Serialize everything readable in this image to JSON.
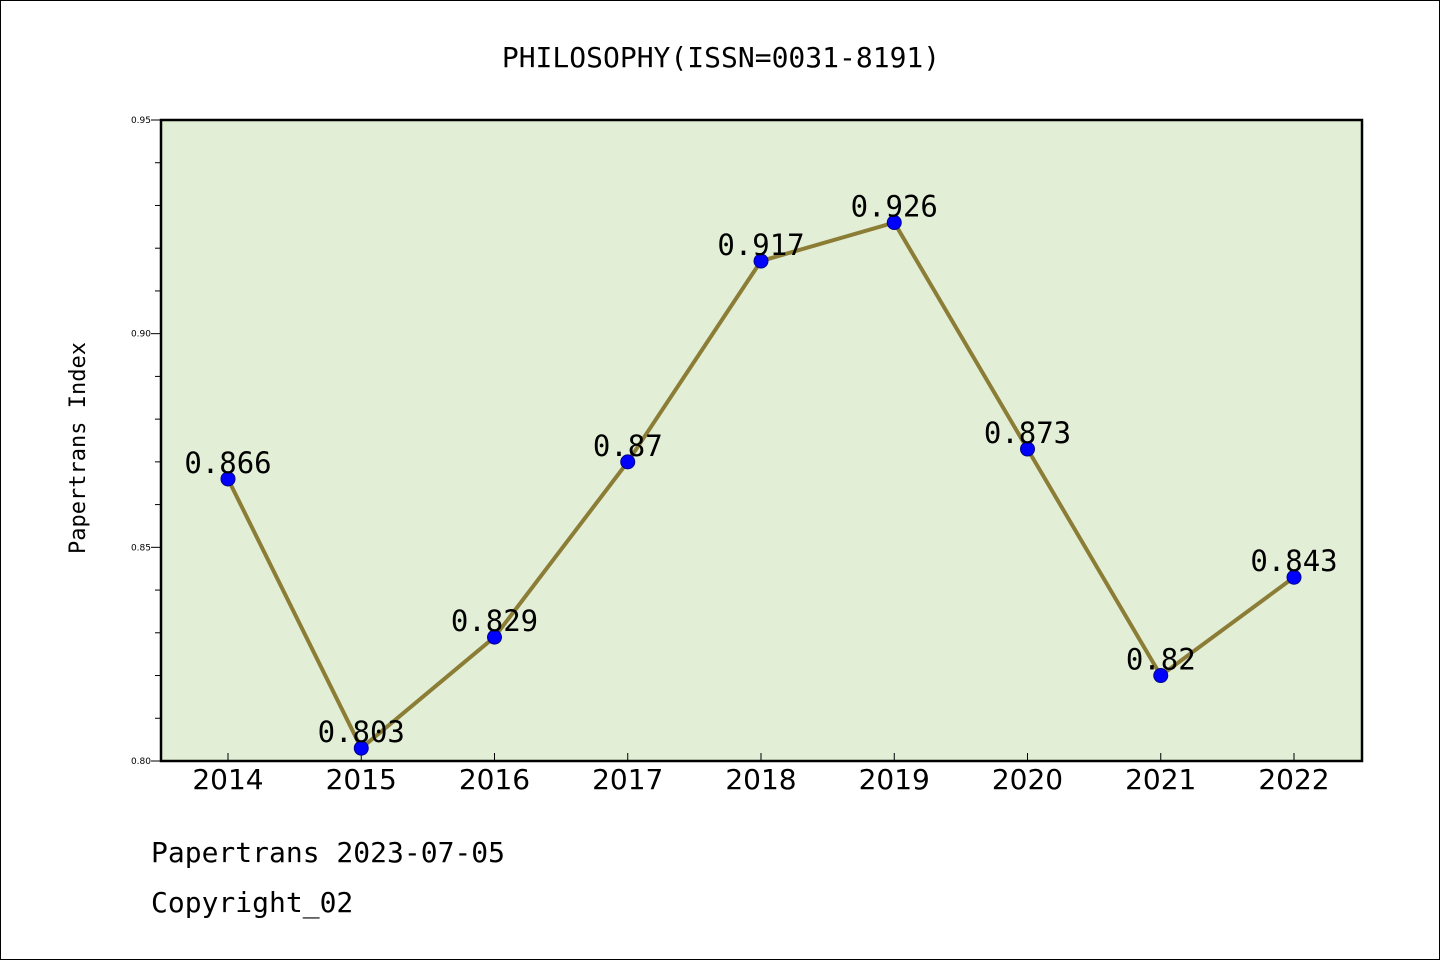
{
  "chart_data": {
    "type": "line",
    "title": "PHILOSOPHY(ISSN=0031-8191)",
    "xlabel": "",
    "ylabel": "Papertrans Index",
    "categories": [
      "2014",
      "2015",
      "2016",
      "2017",
      "2018",
      "2019",
      "2020",
      "2021",
      "2022"
    ],
    "values": [
      0.866,
      0.803,
      0.829,
      0.87,
      0.917,
      0.926,
      0.873,
      0.82,
      0.843
    ],
    "data_labels": [
      "0.866",
      "0.803",
      "0.829",
      "0.87",
      "0.917",
      "0.926",
      "0.873",
      "0.82",
      "0.843"
    ],
    "ylim": [
      0.8,
      0.95
    ],
    "yticks": [
      "0.80",
      "0.85",
      "0.90",
      "0.95"
    ],
    "grid": false,
    "colors": {
      "plot_background": "#e2efd6",
      "line": "#8c7d36",
      "marker": "#0000ff"
    }
  },
  "footer": {
    "source": "Papertrans 2023-07-05",
    "copyright": "Copyright_02"
  }
}
